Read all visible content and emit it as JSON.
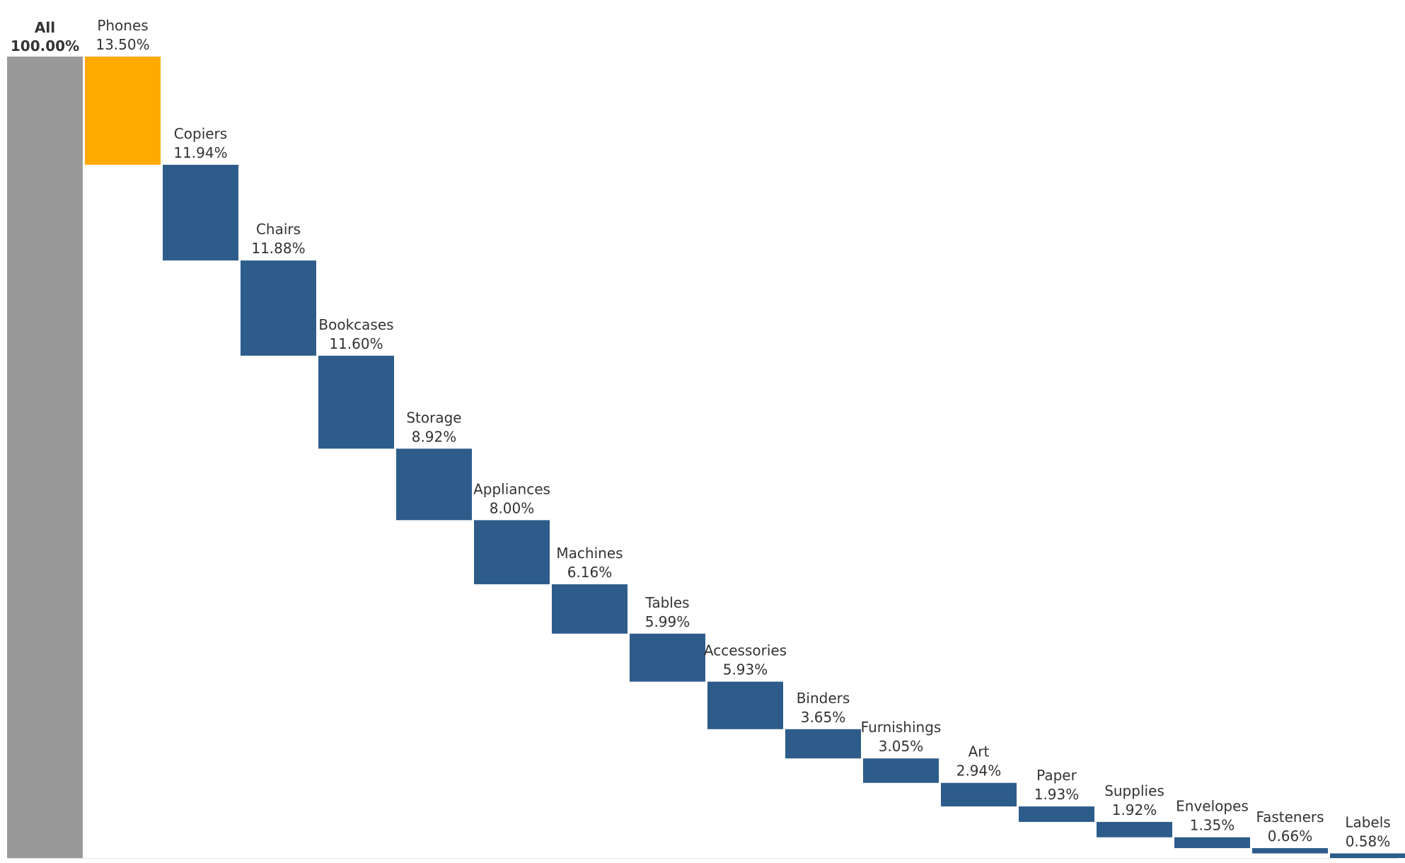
{
  "chart_data": {
    "type": "bar",
    "subtype": "waterfall",
    "title": "",
    "xlabel": "",
    "ylabel": "",
    "ylim": [
      0,
      100
    ],
    "grid": false,
    "legend": "none",
    "total": {
      "label": "All",
      "value": 100.0,
      "display": "100.00%"
    },
    "categories": [
      "Phones",
      "Copiers",
      "Chairs",
      "Bookcases",
      "Storage",
      "Appliances",
      "Machines",
      "Tables",
      "Accessories",
      "Binders",
      "Furnishings",
      "Art",
      "Paper",
      "Supplies",
      "Envelopes",
      "Fasteners",
      "Labels"
    ],
    "values": [
      13.5,
      11.94,
      11.88,
      11.6,
      8.92,
      8.0,
      6.16,
      5.99,
      5.93,
      3.65,
      3.05,
      2.94,
      1.93,
      1.92,
      1.35,
      0.66,
      0.58
    ],
    "value_labels": [
      "13.50%",
      "11.94%",
      "11.88%",
      "11.60%",
      "8.92%",
      "8.00%",
      "6.16%",
      "5.99%",
      "5.93%",
      "3.65%",
      "3.05%",
      "2.94%",
      "1.93%",
      "1.92%",
      "1.35%",
      "0.66%",
      "0.58%"
    ],
    "highlight_index": 0,
    "colors": {
      "total": "#999999",
      "highlight": "#FFAA00",
      "bar": "#2D5C8A",
      "label": "#333333"
    }
  }
}
